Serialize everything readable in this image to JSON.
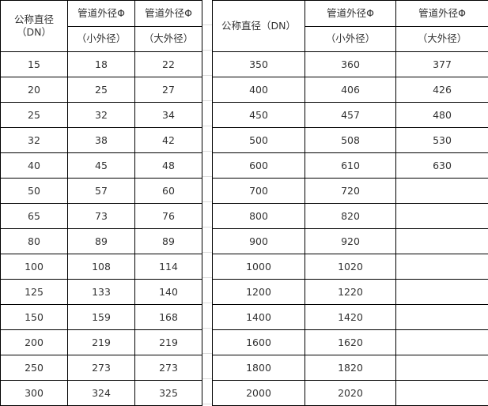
{
  "left_table": {
    "header": {
      "col1": "公称直径\n（DN）",
      "col1_line1": "公称直径",
      "col1_line2": "（DN）",
      "col2_top": "管道外径Φ",
      "col2_bottom": "（小外径）",
      "col3_top": "管道外径Φ",
      "col3_bottom": "（大外径）"
    },
    "rows": [
      [
        "15",
        "18",
        "22"
      ],
      [
        "20",
        "25",
        "27"
      ],
      [
        "25",
        "32",
        "34"
      ],
      [
        "32",
        "38",
        "42"
      ],
      [
        "40",
        "45",
        "48"
      ],
      [
        "50",
        "57",
        "60"
      ],
      [
        "65",
        "73",
        "76"
      ],
      [
        "80",
        "89",
        "89"
      ],
      [
        "100",
        "108",
        "114"
      ],
      [
        "125",
        "133",
        "140"
      ],
      [
        "150",
        "159",
        "168"
      ],
      [
        "200",
        "219",
        "219"
      ],
      [
        "250",
        "273",
        "273"
      ],
      [
        "300",
        "324",
        "325"
      ]
    ]
  },
  "right_table": {
    "header": {
      "col1": "公称直径（DN）",
      "col2_top": "管道外径Φ",
      "col2_bottom": "（小外径）",
      "col3_top": "管道外径Φ",
      "col3_bottom": "（大外径）"
    },
    "rows": [
      [
        "350",
        "360",
        "377"
      ],
      [
        "400",
        "406",
        "426"
      ],
      [
        "450",
        "457",
        "480"
      ],
      [
        "500",
        "508",
        "530"
      ],
      [
        "600",
        "610",
        "630"
      ],
      [
        "700",
        "720",
        ""
      ],
      [
        "800",
        "820",
        ""
      ],
      [
        "900",
        "920",
        ""
      ],
      [
        "1000",
        "1020",
        ""
      ],
      [
        "1200",
        "1220",
        ""
      ],
      [
        "1400",
        "1420",
        ""
      ],
      [
        "1600",
        "1620",
        ""
      ],
      [
        "1800",
        "1820",
        ""
      ],
      [
        "2000",
        "2020",
        ""
      ]
    ]
  }
}
